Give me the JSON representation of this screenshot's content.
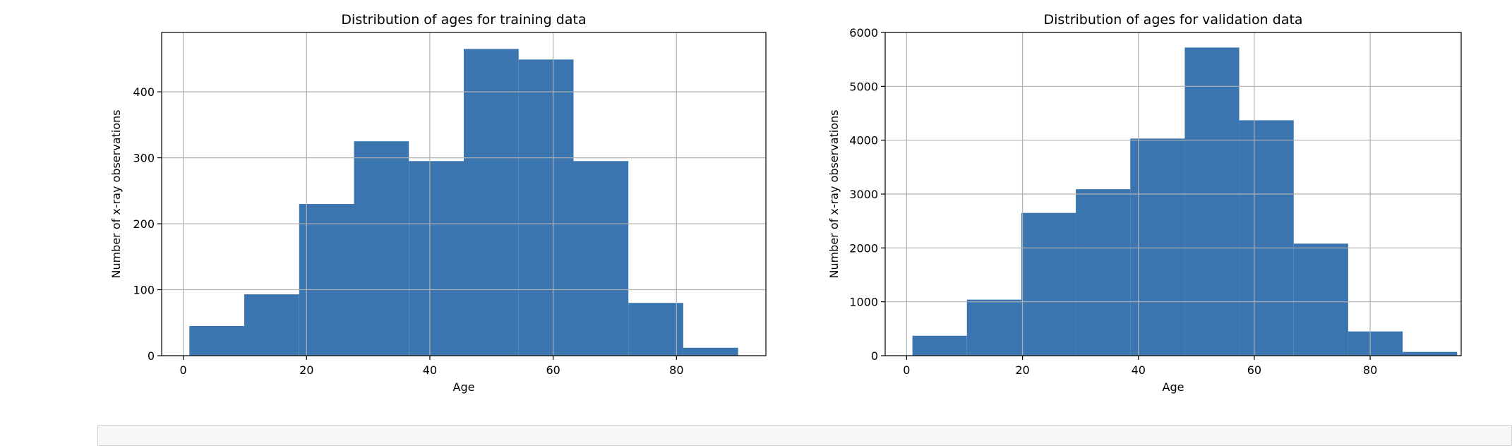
{
  "colors": {
    "bar": "#3a75b0",
    "grid": "#b0b0b0",
    "axis": "#000000"
  },
  "chart_data": [
    {
      "type": "bar",
      "title": "Distribution of ages for training data",
      "xlabel": "Age",
      "ylabel": "Number of x-ray observations",
      "grid": true,
      "xlim": [
        -3.5,
        94.5
      ],
      "ylim": [
        0,
        490
      ],
      "xticks": [
        0,
        20,
        40,
        60,
        80
      ],
      "yticks": [
        0,
        100,
        200,
        300,
        400
      ],
      "bin_edges": [
        1,
        9.9,
        18.8,
        27.7,
        36.6,
        45.5,
        54.4,
        63.3,
        72.2,
        81.1,
        90
      ],
      "values": [
        45,
        93,
        230,
        325,
        295,
        465,
        449,
        295,
        80,
        12
      ]
    },
    {
      "type": "bar",
      "title": "Distribution of ages for validation data",
      "xlabel": "Age",
      "ylabel": "Number of x-ray observations",
      "grid": true,
      "xlim": [
        -3.7,
        95.7
      ],
      "ylim": [
        0,
        6000
      ],
      "xticks": [
        0,
        20,
        40,
        60,
        80
      ],
      "yticks": [
        0,
        1000,
        2000,
        3000,
        4000,
        5000,
        6000
      ],
      "bin_edges": [
        1,
        10.4,
        19.8,
        29.2,
        38.6,
        48,
        57.4,
        66.8,
        76.2,
        85.6,
        95
      ],
      "values": [
        370,
        1040,
        2650,
        3090,
        4030,
        5720,
        4370,
        2080,
        450,
        70
      ]
    }
  ]
}
